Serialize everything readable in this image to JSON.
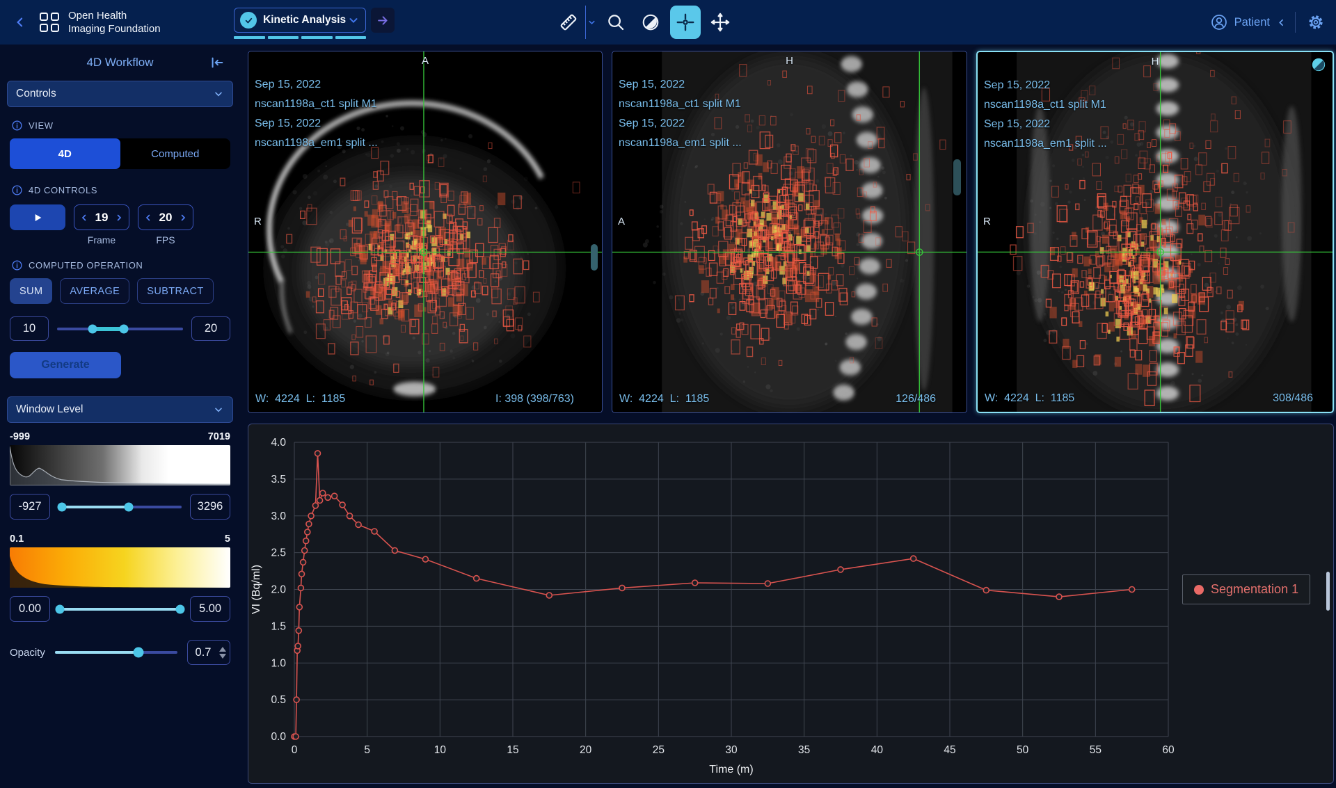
{
  "colors": {
    "accent_teal": "#53c6e8",
    "accent_blue": "#4f7df5",
    "series_red": "#d9534f",
    "crosshair_green": "#36c73a",
    "selected_viewport_border": "#8ae1f5"
  },
  "header": {
    "logo_line1": "Open Health",
    "logo_line2": "Imaging Foundation",
    "workflow_selected": "Kinetic Analysis",
    "patient_label": "Patient"
  },
  "sidebar": {
    "title": "4D Workflow",
    "controls": {
      "header": "Controls",
      "view_label": "VIEW",
      "view_4d": "4D",
      "view_computed": "Computed",
      "controls_label": "4D CONTROLS",
      "frame_value": "19",
      "frame_label": "Frame",
      "fps_value": "20",
      "fps_label": "FPS",
      "operation_label": "COMPUTED OPERATION",
      "op_sum": "SUM",
      "op_average": "AVERAGE",
      "op_subtract": "SUBTRACT",
      "range_start": "10",
      "range_end": "20",
      "generate_label": "Generate"
    },
    "window_level": {
      "header": "Window Level",
      "ct_min": "-999",
      "ct_max": "7019",
      "ct_low": "-927",
      "ct_high": "3296",
      "pt_min": "0.1",
      "pt_max": "5",
      "pt_low": "0.00",
      "pt_high": "5.00",
      "opacity_label": "Opacity",
      "opacity_value": "0.7"
    }
  },
  "viewports": [
    {
      "date1": "Sep 15, 2022",
      "desc1": "nscan1198a_ct1 split M1",
      "date2": "Sep 15, 2022",
      "desc2": "nscan1198a_em1 split ...",
      "marker_top": "A",
      "marker_left": "R",
      "window_level": "W:  4224  L:  1185",
      "slice_info": "I: 398 (398/763)"
    },
    {
      "date1": "Sep 15, 2022",
      "desc1": "nscan1198a_ct1 split M1",
      "date2": "Sep 15, 2022",
      "desc2": "nscan1198a_em1 split ...",
      "marker_top": "H",
      "marker_left": "A",
      "window_level": "W:  4224  L:  1185",
      "slice_info": "126/486"
    },
    {
      "date1": "Sep 15, 2022",
      "desc1": "nscan1198a_ct1 split M1",
      "date2": "Sep 15, 2022",
      "desc2": "nscan1198a_em1 split ...",
      "marker_top": "H",
      "marker_left": "R",
      "window_level": "W:  4224  L:  1185",
      "slice_info": "308/486"
    }
  ],
  "chart_data": {
    "type": "line",
    "title": "",
    "xlabel": "Time (m)",
    "ylabel": "VI (Bq/ml)",
    "xlim": [
      0,
      60
    ],
    "ylim": [
      0,
      4
    ],
    "xticks": [
      0,
      5,
      10,
      15,
      20,
      25,
      30,
      35,
      40,
      45,
      50,
      55,
      60
    ],
    "yticks": [
      0,
      0.5,
      1,
      1.5,
      2,
      2.5,
      3,
      3.5,
      4
    ],
    "grid": true,
    "legend_position": "right",
    "series": [
      {
        "name": "Segmentation 1",
        "color": "#d9534f",
        "x": [
          0,
          0.1,
          0.15,
          0.2,
          0.25,
          0.3,
          0.35,
          0.45,
          0.5,
          0.6,
          0.7,
          0.8,
          0.9,
          1.0,
          1.15,
          1.45,
          1.6,
          1.75,
          1.95,
          2.3,
          2.75,
          3.3,
          3.8,
          4.4,
          5.5,
          6.9,
          9.0,
          12.5,
          17.5,
          22.5,
          27.5,
          32.5,
          37.5,
          42.5,
          47.5,
          52.5,
          57.5
        ],
        "y": [
          0,
          0,
          0.5,
          1.17,
          1.23,
          1.44,
          1.76,
          2.02,
          2.21,
          2.37,
          2.53,
          2.66,
          2.78,
          2.89,
          3.0,
          3.14,
          3.85,
          3.21,
          3.31,
          3.25,
          3.27,
          3.15,
          3.0,
          2.88,
          2.79,
          2.53,
          2.41,
          2.15,
          1.92,
          2.02,
          2.09,
          2.08,
          2.27,
          2.42,
          1.99,
          1.9,
          2.0
        ]
      }
    ]
  }
}
